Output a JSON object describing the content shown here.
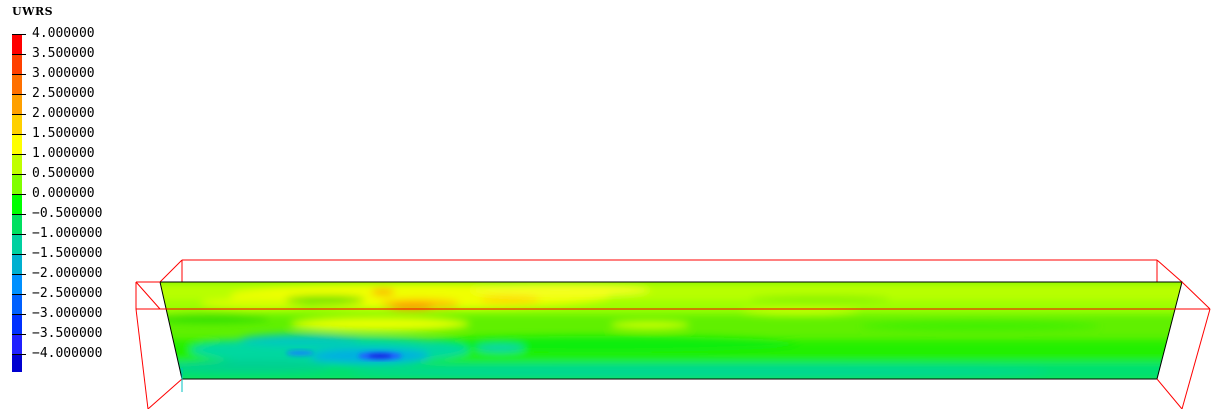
{
  "legend": {
    "title": "UWRS",
    "levels": [
      {
        "label": "4.000000",
        "color": "#ff0000"
      },
      {
        "label": "3.500000",
        "color": "#ff4000"
      },
      {
        "label": "3.000000",
        "color": "#ff7000"
      },
      {
        "label": "2.500000",
        "color": "#ffa000"
      },
      {
        "label": "2.000000",
        "color": "#ffd000"
      },
      {
        "label": "1.500000",
        "color": "#ffff00"
      },
      {
        "label": "1.000000",
        "color": "#c0ff00"
      },
      {
        "label": "0.500000",
        "color": "#80ff00"
      },
      {
        "label": "0.000000",
        "color": "#00ff00"
      },
      {
        "label": "−0.500000",
        "color": "#00e060"
      },
      {
        "label": "−1.000000",
        "color": "#00d0a0"
      },
      {
        "label": "−1.500000",
        "color": "#00b0d0"
      },
      {
        "label": "−2.000000",
        "color": "#0090ff"
      },
      {
        "label": "−2.500000",
        "color": "#0060ff"
      },
      {
        "label": "−3.000000",
        "color": "#0030ff"
      },
      {
        "label": "−3.500000",
        "color": "#2020ff"
      },
      {
        "label": "−4.000000",
        "color": "#0000d0"
      }
    ]
  },
  "colors": {
    "bounding_box": "#ff0000",
    "plane_outline": "#000000"
  }
}
